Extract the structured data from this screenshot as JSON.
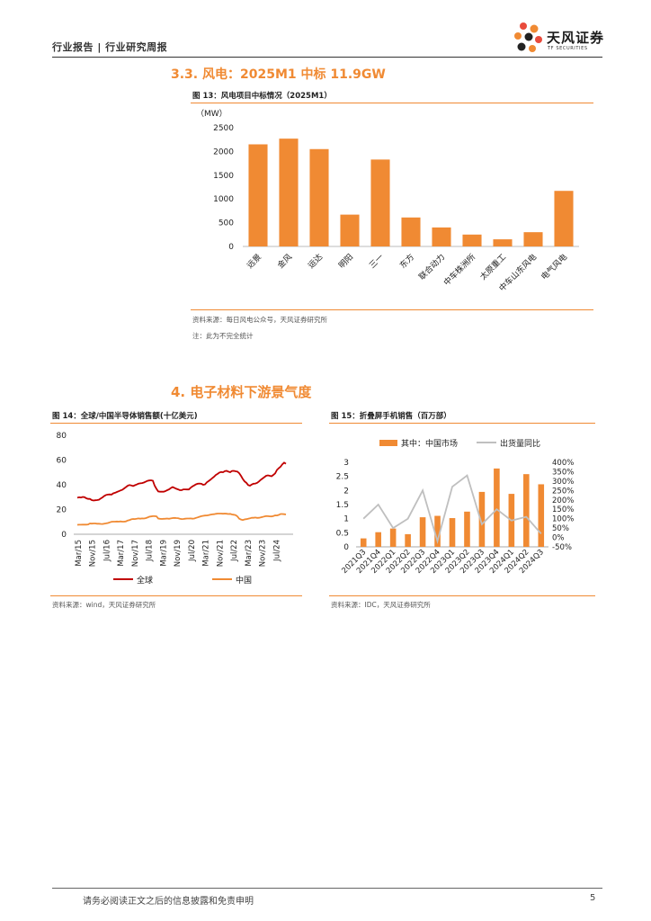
{
  "header": {
    "category": "行业报告 | 行业研究周报"
  },
  "logo": {
    "name_cn": "天风证券",
    "name_en": "TF SECURITIES"
  },
  "section_33": {
    "title": "3.3. 风电：2025M1 中标 11.9GW",
    "figure_title": "图 13：风电项目中标情况（2025M1）",
    "source": "资料来源：每日风电公众号，天风证券研究所",
    "note": "注：此为不完全统计"
  },
  "section_4": {
    "title": "4. 电子材料下游景气度"
  },
  "figure14": {
    "title": "图 14：全球/中国半导体销售额(十亿美元)",
    "source": "资料来源：wind，天风证券研究所"
  },
  "figure15": {
    "title": "图 15：折叠屏手机销售（百万部）",
    "source": "资料来源：IDC，天风证券研究所"
  },
  "footer": {
    "disclaimer": "请务必阅读正文之后的信息披露和免责申明",
    "page": "5"
  },
  "colors": {
    "accent": "#f08a33",
    "global_line": "#c00000",
    "china_line": "#f08a33",
    "yoy_line": "#bfbfbf"
  },
  "chart_data": [
    {
      "type": "bar",
      "title": "风电项目中标情况（2025M1）",
      "ylabel": "（MW）",
      "ylim": [
        0,
        2500
      ],
      "yticks": [
        0,
        500,
        1000,
        1500,
        2000,
        2500
      ],
      "categories": [
        "远景",
        "金风",
        "运达",
        "明阳",
        "三一",
        "东方",
        "联合动力",
        "中车株洲所",
        "太原重工",
        "中车山东风电",
        "电气风电"
      ],
      "values": [
        2150,
        2270,
        2050,
        670,
        1830,
        610,
        400,
        250,
        150,
        300,
        1170
      ]
    },
    {
      "type": "line",
      "title": "全球/中国半导体销售额(十亿美元)",
      "ylim": [
        0,
        80
      ],
      "yticks": [
        0,
        20,
        40,
        60,
        80
      ],
      "xticks": [
        "Mar/15",
        "Nov/15",
        "Jul/16",
        "Mar/17",
        "Nov/17",
        "Jul/18",
        "Mar/19",
        "Nov/19",
        "Jul/20",
        "Mar/21",
        "Nov/21",
        "Jul/22",
        "Mar/23",
        "Nov/23",
        "Jul/24"
      ],
      "series": [
        {
          "name": "全球",
          "values": [
            29.5,
            29.9,
            29.7,
            30.2,
            30.0,
            29.1,
            28.6,
            28.6,
            27.6,
            27.3,
            27.5,
            27.6,
            27.9,
            28.9,
            29.8,
            31.0,
            31.8,
            32.1,
            32.2,
            32.1,
            33.1,
            33.5,
            34.2,
            34.8,
            35.4,
            35.9,
            37.0,
            38.1,
            39.2,
            39.8,
            39.5,
            39.0,
            39.6,
            40.2,
            40.9,
            41.2,
            41.4,
            41.8,
            42.5,
            43.2,
            43.5,
            43.6,
            43.3,
            39.3,
            36.7,
            34.6,
            34.4,
            34.5,
            34.4,
            34.9,
            35.6,
            36.3,
            37.4,
            38.2,
            37.5,
            36.8,
            36.3,
            35.6,
            35.6,
            36.3,
            36.3,
            36.2,
            36.2,
            37.6,
            38.7,
            39.5,
            40.4,
            40.9,
            41.0,
            40.8,
            40.0,
            40.3,
            42.0,
            43.0,
            44.1,
            45.3,
            46.5,
            47.9,
            48.8,
            49.9,
            50.3,
            50.1,
            51.0,
            51.3,
            50.6,
            50.2,
            51.2,
            51.3,
            50.9,
            50.7,
            49.4,
            47.3,
            44.7,
            42.8,
            41.6,
            39.8,
            39.3,
            40.2,
            40.9,
            41.0,
            41.6,
            42.7,
            44.0,
            45.1,
            46.2,
            47.3,
            47.6,
            47.3,
            46.9,
            48.0,
            49.2,
            52.0,
            53.4,
            54.6,
            56.6,
            57.9,
            57.0
          ]
        },
        {
          "name": "中国",
          "values": [
            7.6,
            7.7,
            7.7,
            7.8,
            7.8,
            7.8,
            7.9,
            8.7,
            8.6,
            8.7,
            8.7,
            8.5,
            8.5,
            8.4,
            8.3,
            8.6,
            8.8,
            9.1,
            9.6,
            10.1,
            10.2,
            10.2,
            10.3,
            10.2,
            10.4,
            10.2,
            10.2,
            10.4,
            11.1,
            11.4,
            12.1,
            12.4,
            12.3,
            12.5,
            12.8,
            12.6,
            12.8,
            12.7,
            13.0,
            13.5,
            14.2,
            14.4,
            14.6,
            14.6,
            14.5,
            12.7,
            12.5,
            12.4,
            12.5,
            12.6,
            12.7,
            12.5,
            12.8,
            13.1,
            13.2,
            13.1,
            13.0,
            12.6,
            12.3,
            12.4,
            12.6,
            12.7,
            12.7,
            12.8,
            12.6,
            12.7,
            13.2,
            13.7,
            14.2,
            14.6,
            14.9,
            15.1,
            15.2,
            15.4,
            15.8,
            16.1,
            16.2,
            16.5,
            16.7,
            16.7,
            16.7,
            16.6,
            16.7,
            16.6,
            16.4,
            16.5,
            16.0,
            15.8,
            15.5,
            14.5,
            12.6,
            11.9,
            11.5,
            12.0,
            12.2,
            12.5,
            12.9,
            13.3,
            13.3,
            13.5,
            13.2,
            13.3,
            13.6,
            14.0,
            14.4,
            14.7,
            14.6,
            14.5,
            14.4,
            14.8,
            15.3,
            15.2,
            15.6,
            16.4,
            16.4,
            16.2,
            16.0
          ]
        }
      ],
      "legend": [
        "全球",
        "中国"
      ]
    },
    {
      "type": "bar",
      "title": "折叠屏手机销售（百万部）",
      "categories": [
        "2021Q3",
        "2021Q4",
        "2022Q1",
        "2022Q2",
        "2022Q3",
        "2022Q4",
        "2023Q1",
        "2023Q2",
        "2023Q3",
        "2023Q4",
        "2024Q1",
        "2024Q2",
        "2024Q3"
      ],
      "ylim": [
        0,
        3
      ],
      "yticks": [
        0,
        0.5,
        1,
        1.5,
        2,
        2.5,
        3
      ],
      "y2lim": [
        -50,
        400
      ],
      "y2ticks": [
        "-50%",
        "0%",
        "50%",
        "100%",
        "150%",
        "200%",
        "250%",
        "300%",
        "350%",
        "400%"
      ],
      "series": [
        {
          "name": "其中：中国市场",
          "type": "bar",
          "values": [
            0.3,
            0.52,
            0.65,
            0.45,
            1.05,
            1.1,
            1.02,
            1.25,
            1.95,
            2.78,
            1.88,
            2.58,
            2.22
          ]
        },
        {
          "name": "出货量同比",
          "type": "line",
          "axis": "right",
          "values": [
            100,
            175,
            50,
            100,
            250,
            -20,
            270,
            330,
            70,
            150,
            90,
            110,
            20
          ]
        }
      ],
      "legend": [
        "其中：中国市场",
        "出货量同比"
      ]
    }
  ]
}
